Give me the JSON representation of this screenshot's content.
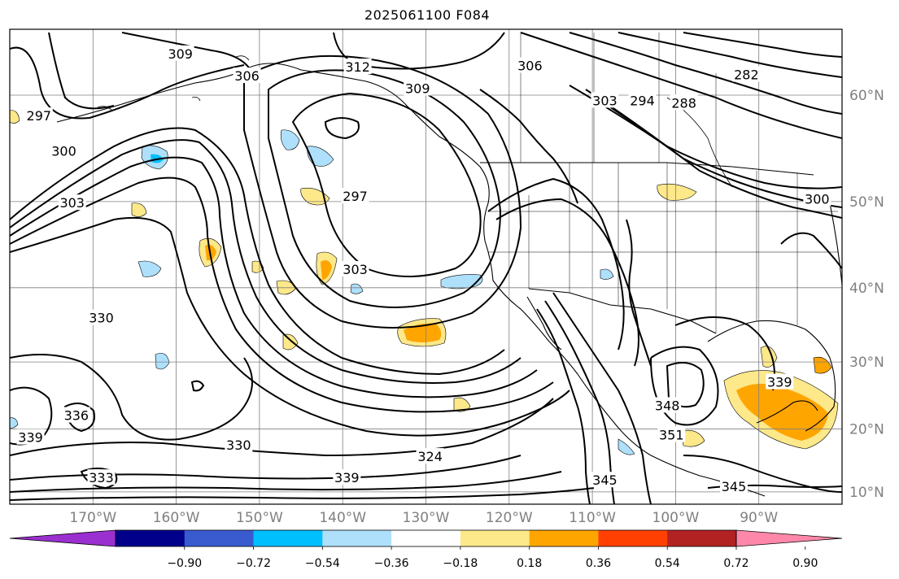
{
  "title": "2025061100 F084",
  "map": {
    "lon_ticks": [
      {
        "lon": -170,
        "label": "170°W"
      },
      {
        "lon": -160,
        "label": "160°W"
      },
      {
        "lon": -150,
        "label": "150°W"
      },
      {
        "lon": -140,
        "label": "140°W"
      },
      {
        "lon": -130,
        "label": "130°W"
      },
      {
        "lon": -120,
        "label": "120°W"
      },
      {
        "lon": -110,
        "label": "110°W"
      },
      {
        "lon": -100,
        "label": "100°W"
      },
      {
        "lon": -90,
        "label": "90°W"
      }
    ],
    "lat_ticks": [
      {
        "lat": 60,
        "label": "60°N"
      },
      {
        "lat": 50,
        "label": "50°N"
      },
      {
        "lat": 40,
        "label": "40°N"
      },
      {
        "lat": 30,
        "label": "30°N"
      },
      {
        "lat": 20,
        "label": "20°N"
      },
      {
        "lat": 10,
        "label": "10°N"
      }
    ],
    "lon_range": [
      -180,
      -80
    ],
    "lat_range": [
      8,
      65
    ],
    "grid": true,
    "contour_labels": [
      {
        "text": "309",
        "lon": -159.5,
        "lat": 63.2
      },
      {
        "text": "306",
        "lon": -151.5,
        "lat": 61.5
      },
      {
        "text": "312",
        "lon": -138.2,
        "lat": 62.2
      },
      {
        "text": "309",
        "lon": -131.0,
        "lat": 60.5
      },
      {
        "text": "306",
        "lon": -117.5,
        "lat": 62.3
      },
      {
        "text": "303",
        "lon": -108.5,
        "lat": 59.5
      },
      {
        "text": "294",
        "lon": -104.0,
        "lat": 59.5
      },
      {
        "text": "288",
        "lon": -99.0,
        "lat": 59.3
      },
      {
        "text": "282",
        "lon": -91.5,
        "lat": 61.6
      },
      {
        "text": "297",
        "lon": -176.5,
        "lat": 58.2
      },
      {
        "text": "300",
        "lon": -173.5,
        "lat": 55.0
      },
      {
        "text": "303",
        "lon": -172.5,
        "lat": 49.8
      },
      {
        "text": "297",
        "lon": -138.5,
        "lat": 50.5
      },
      {
        "text": "303",
        "lon": -138.5,
        "lat": 42.2
      },
      {
        "text": "330",
        "lon": -169.0,
        "lat": 36.0
      },
      {
        "text": "300",
        "lon": -83.0,
        "lat": 50.2
      },
      {
        "text": "339",
        "lon": -87.5,
        "lat": 27.0
      },
      {
        "text": "348",
        "lon": -101.0,
        "lat": 23.5
      },
      {
        "text": "351",
        "lon": -100.5,
        "lat": 19.0
      },
      {
        "text": "336",
        "lon": -172.0,
        "lat": 22.0
      },
      {
        "text": "339",
        "lon": -177.5,
        "lat": 18.6
      },
      {
        "text": "330",
        "lon": -152.5,
        "lat": 17.4
      },
      {
        "text": "324",
        "lon": -129.5,
        "lat": 15.6
      },
      {
        "text": "333",
        "lon": -169.0,
        "lat": 12.2
      },
      {
        "text": "339",
        "lon": -139.5,
        "lat": 12.2
      },
      {
        "text": "345",
        "lon": -108.5,
        "lat": 11.8
      },
      {
        "text": "345",
        "lon": -93.0,
        "lat": 10.8
      }
    ]
  },
  "colorbar": {
    "colors": [
      "#9b30d0",
      "#00008b",
      "#3a5bd0",
      "#00bfff",
      "#aee0fb",
      "#ffffff",
      "#fde88a",
      "#ffa500",
      "#ff4000",
      "#b22222",
      "#ff88aa"
    ],
    "tick_labels": [
      "−0.90",
      "−0.72",
      "−0.54",
      "−0.36",
      "−0.18",
      "0.18",
      "0.36",
      "0.54",
      "0.72",
      "0.90"
    ],
    "extend": "both"
  }
}
